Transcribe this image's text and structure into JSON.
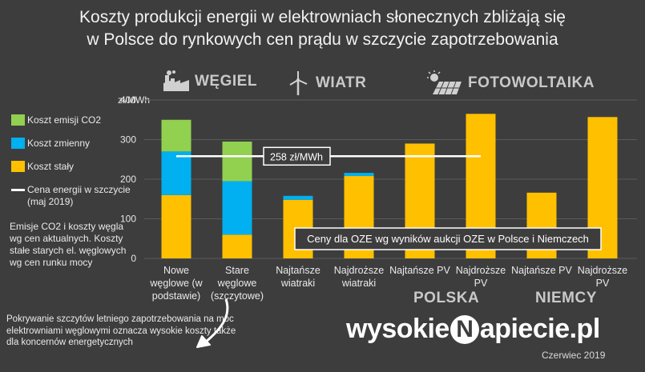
{
  "title_line1": "Koszty produkcji energii w elektrowniach słonecznych zbliżają się",
  "title_line2": "w Polsce do rynkowych cen prądu w szczycie zapotrzebowania",
  "headers": {
    "coal": "WĘGIEL",
    "wind": "WIATR",
    "pv": "FOTOWOLTAIKA"
  },
  "unit_label": "zł/MWh",
  "legend": {
    "co2": "Koszt emisji CO2",
    "variable": "Koszt zmienny",
    "fixed": "Koszt stały",
    "price_line": "Cena energii w szczycie (maj 2019)"
  },
  "note": "Emisje CO2 i koszty węgla wg cen aktualnych. Koszty stałe starych el. węglowych wg cen runku mocy",
  "bottom_note": "Pokrywanie szczytów letniego zapotrzebowania na moc elektrowniami węglowymi oznacza wysokie koszty także dla koncernów energetycznych",
  "countries": {
    "poland": "POLSKA",
    "germany": "NIEMCY"
  },
  "brand": {
    "part1": "wysokie",
    "mark": "N",
    "part2": "apiecie.pl"
  },
  "date": "Czerwiec 2019",
  "colors": {
    "fixed": "#ffc000",
    "variable": "#00b0f0",
    "co2": "#92d050",
    "background": "#3d3d3d",
    "grid": "#5a5a5a"
  },
  "chart_data": {
    "type": "bar",
    "stacked": true,
    "title": "Koszty produkcji energii w elektrowniach słonecznych zbliżają się w Polsce do rynkowych cen prądu w szczycie zapotrzebowania",
    "ylabel": "zł/MWh",
    "ylim": [
      0,
      400
    ],
    "yticks": [
      0,
      100,
      200,
      300,
      400
    ],
    "categories": [
      [
        "Nowe",
        "węglowe (w",
        "podstawie)"
      ],
      [
        "Stare",
        "węglowe",
        "(szczytowe)"
      ],
      [
        "Najtańsze",
        "wiatraki"
      ],
      [
        "Najdroższe",
        "wiatraki"
      ],
      [
        "Najtańsze PV"
      ],
      [
        "Najdroższe",
        "PV"
      ],
      [
        "Najtańsze PV"
      ],
      [
        "Najdroższe",
        "PV"
      ]
    ],
    "series": [
      {
        "name": "Koszt stały",
        "color": "#ffc000",
        "values": [
          160,
          60,
          148,
          208,
          290,
          365,
          166,
          357
        ]
      },
      {
        "name": "Koszt zmienny",
        "color": "#00b0f0",
        "values": [
          110,
          135,
          10,
          8,
          0,
          0,
          0,
          0
        ]
      },
      {
        "name": "Koszt emisji CO2",
        "color": "#92d050",
        "values": [
          80,
          100,
          0,
          0,
          0,
          0,
          0,
          0
        ]
      }
    ],
    "reference_line": {
      "name": "Cena energii w szczycie (maj 2019)",
      "value": 258,
      "label": "258 zł/MWh"
    },
    "annotation": "Ceny dla OZE wg wyników aukcji OZE w Polsce i Niemczech"
  }
}
